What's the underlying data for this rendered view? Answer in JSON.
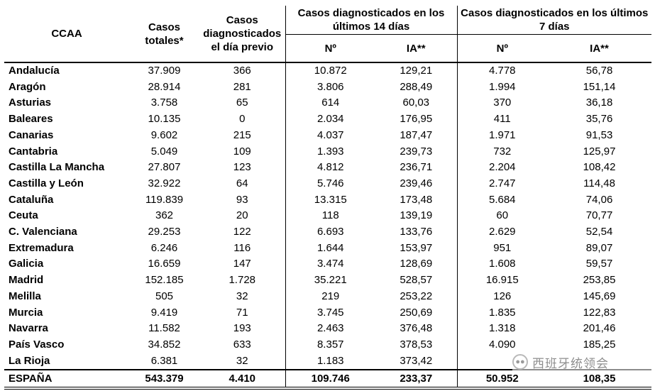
{
  "headers": {
    "ccaa": "CCAA",
    "casos_totales": "Casos totales*",
    "casos_previo": "Casos diagnosticados el día previo",
    "group14": "Casos diagnosticados en los últimos 14 días",
    "group7": "Casos diagnosticados en los últimos 7 días",
    "n14": "Nº",
    "ia14": "IA**",
    "n7": "Nº",
    "ia7": "IA**"
  },
  "rows": [
    {
      "ccaa": "Andalucía",
      "totales": "37.909",
      "previo": "366",
      "n14": "10.872",
      "ia14": "129,21",
      "n7": "4.778",
      "ia7": "56,78"
    },
    {
      "ccaa": "Aragón",
      "totales": "28.914",
      "previo": "281",
      "n14": "3.806",
      "ia14": "288,49",
      "n7": "1.994",
      "ia7": "151,14"
    },
    {
      "ccaa": "Asturias",
      "totales": "3.758",
      "previo": "65",
      "n14": "614",
      "ia14": "60,03",
      "n7": "370",
      "ia7": "36,18"
    },
    {
      "ccaa": "Baleares",
      "totales": "10.135",
      "previo": "0",
      "n14": "2.034",
      "ia14": "176,95",
      "n7": "411",
      "ia7": "35,76"
    },
    {
      "ccaa": "Canarias",
      "totales": "9.602",
      "previo": "215",
      "n14": "4.037",
      "ia14": "187,47",
      "n7": "1.971",
      "ia7": "91,53"
    },
    {
      "ccaa": "Cantabria",
      "totales": "5.049",
      "previo": "109",
      "n14": "1.393",
      "ia14": "239,73",
      "n7": "732",
      "ia7": "125,97"
    },
    {
      "ccaa": "Castilla La Mancha",
      "totales": "27.807",
      "previo": "123",
      "n14": "4.812",
      "ia14": "236,71",
      "n7": "2.204",
      "ia7": "108,42"
    },
    {
      "ccaa": "Castilla y León",
      "totales": "32.922",
      "previo": "64",
      "n14": "5.746",
      "ia14": "239,46",
      "n7": "2.747",
      "ia7": "114,48"
    },
    {
      "ccaa": "Cataluña",
      "totales": "119.839",
      "previo": "93",
      "n14": "13.315",
      "ia14": "173,48",
      "n7": "5.684",
      "ia7": "74,06"
    },
    {
      "ccaa": "Ceuta",
      "totales": "362",
      "previo": "20",
      "n14": "118",
      "ia14": "139,19",
      "n7": "60",
      "ia7": "70,77"
    },
    {
      "ccaa": "C. Valenciana",
      "totales": "29.253",
      "previo": "122",
      "n14": "6.693",
      "ia14": "133,76",
      "n7": "2.629",
      "ia7": "52,54"
    },
    {
      "ccaa": "Extremadura",
      "totales": "6.246",
      "previo": "116",
      "n14": "1.644",
      "ia14": "153,97",
      "n7": "951",
      "ia7": "89,07"
    },
    {
      "ccaa": "Galicia",
      "totales": "16.659",
      "previo": "147",
      "n14": "3.474",
      "ia14": "128,69",
      "n7": "1.608",
      "ia7": "59,57"
    },
    {
      "ccaa": "Madrid",
      "totales": "152.185",
      "previo": "1.728",
      "n14": "35.221",
      "ia14": "528,57",
      "n7": "16.915",
      "ia7": "253,85"
    },
    {
      "ccaa": "Melilla",
      "totales": "505",
      "previo": "32",
      "n14": "219",
      "ia14": "253,22",
      "n7": "126",
      "ia7": "145,69"
    },
    {
      "ccaa": "Murcia",
      "totales": "9.419",
      "previo": "71",
      "n14": "3.745",
      "ia14": "250,69",
      "n7": "1.835",
      "ia7": "122,83"
    },
    {
      "ccaa": "Navarra",
      "totales": "11.582",
      "previo": "193",
      "n14": "2.463",
      "ia14": "376,48",
      "n7": "1.318",
      "ia7": "201,46"
    },
    {
      "ccaa": "País Vasco",
      "totales": "34.852",
      "previo": "633",
      "n14": "8.357",
      "ia14": "378,53",
      "n7": "4.090",
      "ia7": "185,25"
    },
    {
      "ccaa": "La Rioja",
      "totales": "6.381",
      "previo": "32",
      "n14": "1.183",
      "ia14": "373,42",
      "n7": "",
      "ia7": ""
    }
  ],
  "total": {
    "ccaa": "ESPAÑA",
    "totales": "543.379",
    "previo": "4.410",
    "n14": "109.746",
    "ia14": "233,37",
    "n7": "50.952",
    "ia7": "108,35"
  },
  "watermark": {
    "text": "西班牙统领会",
    "icon": "wechat-bubble-icon"
  }
}
